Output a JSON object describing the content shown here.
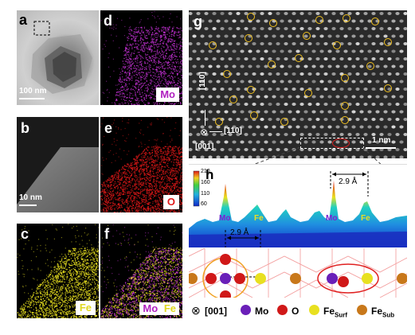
{
  "figure": {
    "panels": {
      "a": {
        "label": "a",
        "scale": "100 nm"
      },
      "b": {
        "label": "b",
        "scale": "10 nm"
      },
      "c": {
        "label": "c",
        "element": "Fe"
      },
      "d": {
        "label": "d",
        "element": "Mo"
      },
      "e": {
        "label": "e",
        "element": "O"
      },
      "f": {
        "label": "f",
        "element1": "Mo",
        "element2": "Fe"
      },
      "g": {
        "label": "g",
        "scale": "1 nm",
        "dir1": "[110]",
        "dir2": "[̄110]",
        "dir3": "[001]"
      },
      "h": {
        "label": "h",
        "spacing1": "2.9 Å",
        "spacing2": "2.9 Å",
        "peak_labels": [
          "Mo",
          "Fe",
          "Mo",
          "Fe"
        ],
        "colorbar_ticks": [
          "210",
          "160",
          "110",
          "60"
        ]
      }
    },
    "legend": {
      "zone_axis": "[001]",
      "items": [
        {
          "name": "Mo",
          "color": "#6a1fb8"
        },
        {
          "name": "O",
          "color": "#d01818"
        },
        {
          "name": "Fe",
          "sub": "Surf",
          "color": "#e8e020"
        },
        {
          "name": "Fe",
          "sub": "Sub",
          "color": "#c8781a"
        }
      ]
    },
    "colors": {
      "mo_map": "#c030d0",
      "o_map": "#e01818",
      "fe_map": "#e8e020",
      "highlight_circle": "#f0c020",
      "box_red": "#e02020"
    }
  }
}
